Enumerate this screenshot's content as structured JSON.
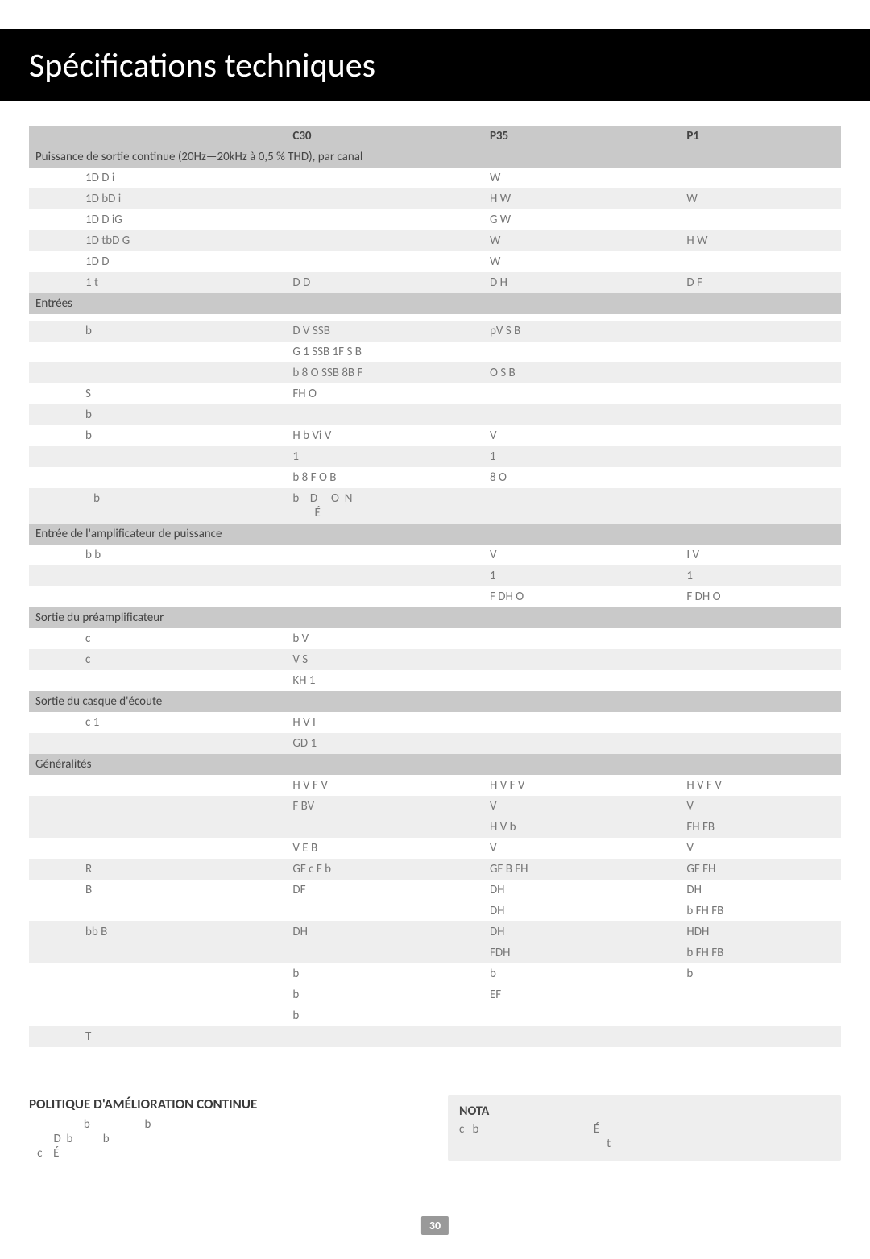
{
  "page_title": "Spécifications techniques",
  "page_number": "30",
  "columns": {
    "c1": "C30",
    "c2": "P35",
    "c3": "P1"
  },
  "sections": {
    "s1": "Puissance de sortie continue (20Hz—20kHz à 0,5 % THD), par canal",
    "s2": "Entrées",
    "s3": "Entrée de l'amplificateur de puissance",
    "s4": "Sortie du préamplificateur",
    "s5": "Sortie du casque d'écoute",
    "s6": "Généralités"
  },
  "rows": {
    "r1": {
      "l": "1D     D  i",
      "c1": "",
      "c2": "     W",
      "c3": ""
    },
    "r2": {
      "l": "1D   bD    i",
      "c1": "",
      "c2": "H    W",
      "c3": "     W"
    },
    "r3": {
      "l": "1D      D  iG",
      "c1": "",
      "c2": "G    W",
      "c3": ""
    },
    "r4": {
      "l": "1D  tbD   G",
      "c1": "",
      "c2": "     W",
      "c3": "H    W"
    },
    "r5": {
      "l": "1D       D",
      "c1": "",
      "c2": "   W",
      "c3": ""
    },
    "r6": {
      "l": "          1  t",
      "c1": "D               D",
      "c2": "D    H",
      "c3": "D    F"
    },
    "r7": {
      "l": "",
      "c1": "",
      "c2": "",
      "c3": ""
    },
    "r8": {
      "l": "         b",
      "c1": "  D     V   SSB",
      "c2": "  pV    S  B",
      "c3": ""
    },
    "r9": {
      "l": "",
      "c1": "G   1   SSB  1F  S  B",
      "c2": "",
      "c3": ""
    },
    "r10": {
      "l": "",
      "c1": "b 8     O   SSB   8B F",
      "c2": "O    S  B",
      "c3": ""
    },
    "r11": {
      "l": "   S",
      "c1": "FH    O",
      "c2": "",
      "c3": ""
    },
    "r12": {
      "l": "        b",
      "c1": "",
      "c2": "",
      "c3": ""
    },
    "r13": {
      "l": "         b",
      "c1": "  H   b  Vi   V",
      "c2": "     V",
      "c3": ""
    },
    "r14": {
      "l": "",
      "c1": "     1",
      "c2": "  1",
      "c3": ""
    },
    "r15": {
      "l": "",
      "c1": "b 8   F   O       B",
      "c2": "8      O",
      "c3": ""
    },
    "r16": {
      "l": "   b",
      "c1": "b    D     O  N\n        É",
      "c2": "",
      "c3": ""
    },
    "r17": {
      "l": "   b              b",
      "c1": "",
      "c2": "     V",
      "c3": "  I    V"
    },
    "r18": {
      "l": "",
      "c1": "",
      "c2": "  1",
      "c3": "  1"
    },
    "r19": {
      "l": "",
      "c1": "",
      "c2": "F  DH    O",
      "c3": "F  DH    O"
    },
    "r20": {
      "l": "c",
      "c1": "     b   V",
      "c2": "",
      "c3": ""
    },
    "r21": {
      "l": "c",
      "c1": "   V    S",
      "c2": "",
      "c3": ""
    },
    "r22": {
      "l": "",
      "c1": "KH  1",
      "c2": "",
      "c3": ""
    },
    "r23": {
      "l": "c              1",
      "c1": "H  V           I",
      "c2": "",
      "c3": ""
    },
    "r24": {
      "l": "",
      "c1": "GD 1",
      "c2": "",
      "c3": ""
    },
    "r25": {
      "l": "",
      "c1": "    H  V       F   V",
      "c2": "   H  V      F   V",
      "c3": "   H  V      F   V"
    },
    "r26": {
      "l": "",
      "c1": "F   BV",
      "c2": "     V",
      "c3": "     V"
    },
    "r27": {
      "l": "",
      "c1": "",
      "c2": "H    V        b",
      "c3": "   FH  FB"
    },
    "r28": {
      "l": "",
      "c1": "   V E    B",
      "c2": "  V",
      "c3": "  V"
    },
    "r29": {
      "l": "        R",
      "c1": "GF    c   F   b",
      "c2": "GF    B  FH",
      "c3": "GF       FH"
    },
    "r30": {
      "l": "     B",
      "c1": "DF",
      "c2": "DH",
      "c3": "  DH"
    },
    "r31": {
      "l": "",
      "c1": "",
      "c2": "   DH",
      "c3": "b     FH  FB"
    },
    "r32": {
      "l": "      bb   B",
      "c1": "  DH",
      "c2": "DH",
      "c3": "  HDH"
    },
    "r33": {
      "l": "",
      "c1": "",
      "c2": "FDH",
      "c3": "b     FH  FB"
    },
    "r34": {
      "l": "",
      "c1": "  b",
      "c2": "  b",
      "c3": "  b"
    },
    "r35": {
      "l": "",
      "c1": "  b",
      "c2": "EF",
      "c3": ""
    },
    "r36": {
      "l": "",
      "c1": "     b",
      "c2": "",
      "c3": ""
    },
    "r37": {
      "l": "T",
      "c1": "",
      "c2": "",
      "c3": ""
    }
  },
  "policy": {
    "heading": "POLITIQUE D'AMÉLIORATION CONTINUE",
    "body": "                    b                    b\n         D  b           b\n   c    É"
  },
  "nota": {
    "heading": "NOTA",
    "body": "c   b                                          É\n                                                      t"
  }
}
